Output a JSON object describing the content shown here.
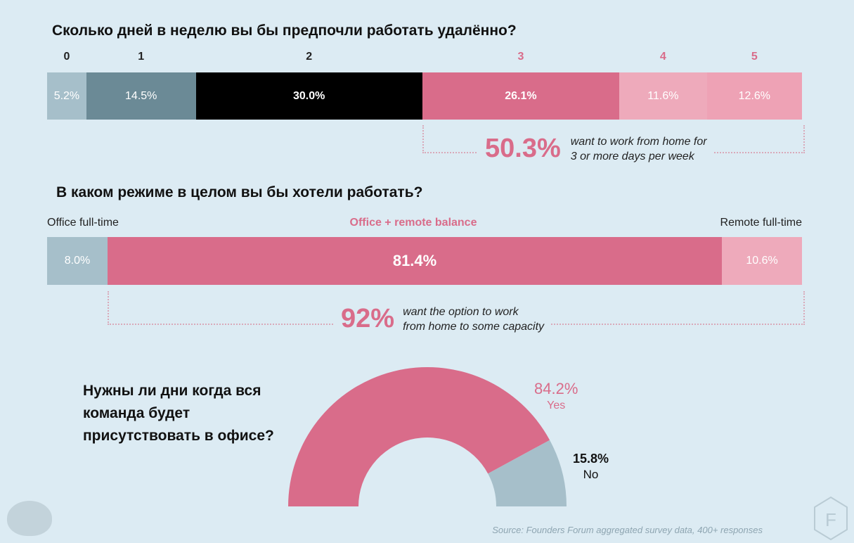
{
  "chart_data": [
    {
      "type": "bar",
      "title": "Сколько дней в неделю вы бы предпочли работать удалённо?",
      "categories": [
        "0",
        "1",
        "2",
        "3",
        "4",
        "5"
      ],
      "values": [
        5.2,
        14.5,
        30.0,
        26.1,
        11.6,
        12.6
      ],
      "labels": [
        "5.2%",
        "14.5%",
        "30.0%",
        "26.1%",
        "11.6%",
        "12.6%"
      ],
      "colors": [
        "#a6bfca",
        "#6b8a96",
        "#000000",
        "#d96c8a",
        "#eeaabb",
        "#eea2b5"
      ],
      "cat_colors": [
        "#222",
        "#222",
        "#222",
        "#d96c8a",
        "#d96c8a",
        "#d96c8a"
      ],
      "annotation": {
        "value": "50.3%",
        "text1": "want to work from home for",
        "text2": "3 or more days per week"
      }
    },
    {
      "type": "bar",
      "title": "В каком режиме в целом вы бы хотели работать?",
      "categories": [
        "Office full-time",
        "Office + remote balance",
        "Remote full-time"
      ],
      "values": [
        8.0,
        81.4,
        10.6
      ],
      "labels": [
        "8.0%",
        "81.4%",
        "10.6%"
      ],
      "colors": [
        "#a6bfca",
        "#d96c8a",
        "#eeaabb"
      ],
      "annotation": {
        "value": "92%",
        "text1": "want the option to work",
        "text2": "from home to some capacity"
      }
    },
    {
      "type": "pie",
      "title_lines": [
        "Нужны ли дни когда вся",
        "команда будет",
        "присутствовать в офисе?"
      ],
      "categories": [
        "Yes",
        "No"
      ],
      "values": [
        84.2,
        15.8
      ],
      "labels": [
        "84.2%",
        "15.8%"
      ],
      "colors": [
        "#d96c8a",
        "#a6bfca"
      ]
    }
  ],
  "source": "Source: Founders Forum aggregated survey data, 400+ responses",
  "logo_text": "F"
}
